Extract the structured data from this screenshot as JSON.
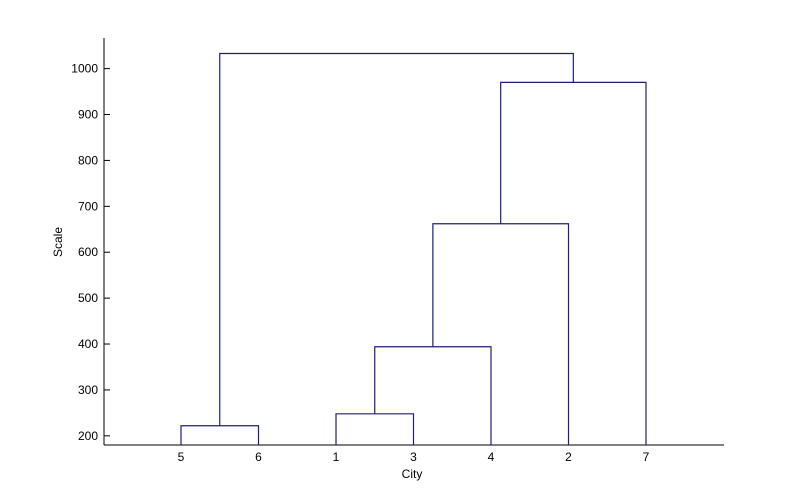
{
  "chart_data": {
    "type": "dendrogram",
    "xlabel": "City",
    "ylabel": "Scale",
    "ylim": [
      180,
      1085
    ],
    "yticks": [
      200,
      300,
      400,
      500,
      600,
      700,
      800,
      900,
      1000
    ],
    "leaf_order": [
      "5",
      "6",
      "1",
      "3",
      "4",
      "2",
      "7"
    ],
    "grid": false,
    "line_color": "#1f1f7a",
    "merges": [
      {
        "members": [
          "5",
          "6"
        ],
        "height": 222
      },
      {
        "members": [
          "1",
          "3"
        ],
        "height": 248
      },
      {
        "members": [
          "1",
          "3",
          "4"
        ],
        "height": 394
      },
      {
        "members": [
          "1",
          "3",
          "4",
          "2"
        ],
        "height": 662
      },
      {
        "members": [
          "1",
          "3",
          "4",
          "2",
          "7"
        ],
        "height": 970
      },
      {
        "members": [
          "5",
          "6",
          "1",
          "3",
          "4",
          "2",
          "7"
        ],
        "height": 1033
      }
    ]
  }
}
